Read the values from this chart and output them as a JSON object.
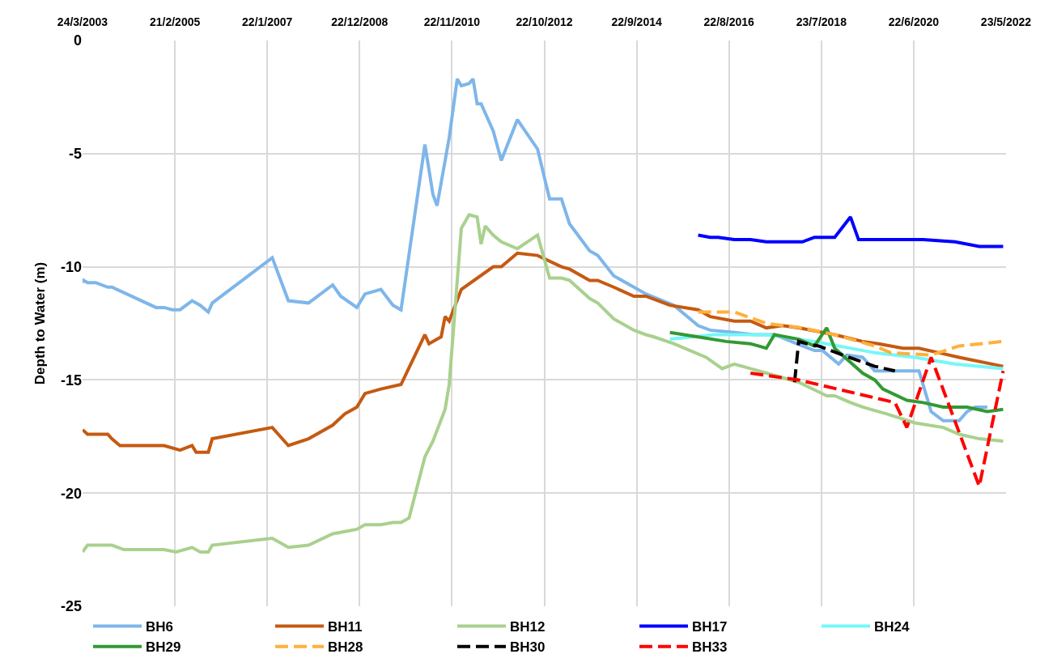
{
  "chart_data": {
    "type": "line",
    "ylabel": "Depth to Water (m)",
    "xlim": [
      "2003-03-24",
      "2022-05-23"
    ],
    "xticks": [
      {
        "value": "2003-03-24",
        "label": "24/3/2003"
      },
      {
        "value": "2005-02-21",
        "label": "21/2/2005"
      },
      {
        "value": "2007-01-22",
        "label": "22/1/2007"
      },
      {
        "value": "2008-12-22",
        "label": "22/12/2008"
      },
      {
        "value": "2010-11-22",
        "label": "22/11/2010"
      },
      {
        "value": "2012-10-22",
        "label": "22/10/2012"
      },
      {
        "value": "2014-09-22",
        "label": "22/9/2014"
      },
      {
        "value": "2016-08-22",
        "label": "22/8/2016"
      },
      {
        "value": "2018-07-23",
        "label": "23/7/2018"
      },
      {
        "value": "2020-06-22",
        "label": "22/6/2020"
      },
      {
        "value": "2022-05-23",
        "label": "23/5/2022"
      }
    ],
    "ylim": [
      -25,
      0
    ],
    "yticks": [
      -25,
      -20,
      -15,
      -10,
      -5,
      0
    ],
    "grid": true,
    "legend": "bottom",
    "marker": "none",
    "series": [
      {
        "name": "BH6",
        "color": "#7eb6ea",
        "line_style": "solid",
        "x": [
          "2003-03-24",
          "2003-04",
          "2003-05",
          "2003-07",
          "2003-10",
          "2003-11",
          "2004-10",
          "2004-12",
          "2005-02",
          "2005-04",
          "2005-07",
          "2005-09",
          "2005-11",
          "2005-12",
          "2007-03",
          "2007-07",
          "2007-12",
          "2008-06",
          "2008-08",
          "2008-12",
          "2009-02",
          "2009-06",
          "2009-09",
          "2009-11",
          "2010-05",
          "2010-07",
          "2010-08",
          "2010-11",
          "2011-01",
          "2011-02",
          "2011-04",
          "2011-05",
          "2011-06",
          "2011-07",
          "2011-10",
          "2011-12",
          "2012-04",
          "2012-09",
          "2012-12",
          "2013-03",
          "2013-05",
          "2013-10",
          "2013-12",
          "2014-04",
          "2014-09",
          "2014-12",
          "2015-07",
          "2016-01",
          "2016-04",
          "2016-10",
          "2017-03",
          "2017-08",
          "2018-03",
          "2018-06",
          "2018-08",
          "2018-12",
          "2019-02",
          "2019-06",
          "2019-09",
          "2019-11",
          "2020-08",
          "2020-11",
          "2021-02",
          "2021-06",
          "2021-08",
          "2021-10",
          "2022-01"
        ],
        "values": [
          -10.7,
          -10.6,
          -10.7,
          -10.7,
          -10.9,
          -10.9,
          -11.8,
          -11.8,
          -11.9,
          -11.9,
          -11.5,
          -11.7,
          -12.0,
          -11.6,
          -9.6,
          -11.5,
          -11.6,
          -10.8,
          -11.3,
          -11.8,
          -11.2,
          -11.0,
          -11.7,
          -11.9,
          -4.6,
          -6.8,
          -7.3,
          -4.3,
          -1.7,
          -2.0,
          -1.9,
          -1.7,
          -2.8,
          -2.8,
          -4.0,
          -5.3,
          -3.5,
          -4.8,
          -7.0,
          -7.0,
          -8.1,
          -9.3,
          -9.5,
          -10.4,
          -10.9,
          -11.2,
          -11.7,
          -12.6,
          -12.8,
          -12.9,
          -13.0,
          -13.0,
          -13.5,
          -13.7,
          -13.7,
          -14.3,
          -13.9,
          -14.0,
          -14.6,
          -14.6,
          -14.6,
          -16.4,
          -16.8,
          -16.8,
          -16.4,
          -16.2,
          -16.2
        ]
      },
      {
        "name": "BH11",
        "color": "#c55a11",
        "line_style": "solid",
        "x": [
          "2003-03-24",
          "2003-05",
          "2003-10",
          "2003-11",
          "2004-01",
          "2004-12",
          "2005-04",
          "2005-07",
          "2005-08",
          "2005-11",
          "2005-12",
          "2007-03",
          "2007-07",
          "2007-12",
          "2008-06",
          "2008-09",
          "2008-12",
          "2009-02",
          "2009-06",
          "2009-11",
          "2010-05",
          "2010-06",
          "2010-08",
          "2010-09",
          "2010-10",
          "2010-11",
          "2011-02",
          "2011-10",
          "2011-12",
          "2012-04",
          "2012-09",
          "2013-03",
          "2013-05",
          "2013-10",
          "2013-12",
          "2014-04",
          "2014-09",
          "2014-12",
          "2015-06",
          "2016-01",
          "2016-04",
          "2016-10",
          "2017-02",
          "2017-06",
          "2017-10",
          "2018-02",
          "2018-11",
          "2019-06",
          "2019-10",
          "2020-04",
          "2020-08",
          "2021-01",
          "2021-06",
          "2022-05"
        ],
        "values": [
          -17.2,
          -17.4,
          -17.4,
          -17.6,
          -17.9,
          -17.9,
          -18.1,
          -17.9,
          -18.2,
          -18.2,
          -17.6,
          -17.1,
          -17.9,
          -17.6,
          -17.0,
          -16.5,
          -16.2,
          -15.6,
          -15.4,
          -15.2,
          -13.0,
          -13.4,
          -13.2,
          -13.1,
          -12.2,
          -12.4,
          -11.0,
          -10.0,
          -10.0,
          -9.4,
          -9.5,
          -10.0,
          -10.1,
          -10.6,
          -10.6,
          -10.9,
          -11.3,
          -11.3,
          -11.7,
          -11.9,
          -12.2,
          -12.4,
          -12.4,
          -12.7,
          -12.6,
          -12.7,
          -13.0,
          -13.3,
          -13.4,
          -13.6,
          -13.6,
          -13.8,
          -14.0,
          -14.4
        ]
      },
      {
        "name": "BH12",
        "color": "#a9d18e",
        "line_style": "solid",
        "x": [
          "2003-03-24",
          "2003-05",
          "2003-11",
          "2004-02",
          "2004-12",
          "2005-03",
          "2005-07",
          "2005-09",
          "2005-11",
          "2005-12",
          "2007-03",
          "2007-07",
          "2007-12",
          "2008-06",
          "2008-09",
          "2008-12",
          "2009-02",
          "2009-06",
          "2009-09",
          "2009-11",
          "2010-01",
          "2010-05",
          "2010-07",
          "2010-10",
          "2010-11",
          "2011-02",
          "2011-04",
          "2011-06",
          "2011-07",
          "2011-08",
          "2011-10",
          "2011-12",
          "2012-04",
          "2012-09",
          "2012-12",
          "2013-03",
          "2013-05",
          "2013-10",
          "2013-12",
          "2014-04",
          "2014-09",
          "2014-12",
          "2015-02",
          "2015-07",
          "2016-03",
          "2016-07",
          "2016-10",
          "2017-02",
          "2017-06",
          "2018-02",
          "2018-09",
          "2018-11",
          "2019-03",
          "2019-06",
          "2019-12",
          "2020-07",
          "2021-02",
          "2021-06",
          "2021-11",
          "2022-05"
        ],
        "values": [
          -22.6,
          -22.3,
          -22.3,
          -22.5,
          -22.5,
          -22.6,
          -22.4,
          -22.6,
          -22.6,
          -22.3,
          -22.0,
          -22.4,
          -22.3,
          -21.8,
          -21.7,
          -21.6,
          -21.4,
          -21.4,
          -21.3,
          -21.3,
          -21.1,
          -18.4,
          -17.7,
          -16.3,
          -15.2,
          -8.3,
          -7.7,
          -7.8,
          -9.0,
          -8.2,
          -8.6,
          -8.9,
          -9.2,
          -8.6,
          -10.5,
          -10.5,
          -10.6,
          -11.4,
          -11.6,
          -12.3,
          -12.8,
          -13.0,
          -13.1,
          -13.4,
          -14.0,
          -14.5,
          -14.3,
          -14.5,
          -14.7,
          -15.1,
          -15.7,
          -15.7,
          -16.0,
          -16.2,
          -16.5,
          -16.9,
          -17.1,
          -17.4,
          -17.6,
          -17.7
        ]
      },
      {
        "name": "BH17",
        "color": "#0000ff",
        "line_style": "solid",
        "x": [
          "2016-01",
          "2016-04",
          "2016-06",
          "2016-10",
          "2017-02",
          "2017-06",
          "2018-03",
          "2018-06",
          "2018-11",
          "2019-03",
          "2019-05",
          "2019-12",
          "2020-09",
          "2021-05",
          "2021-11",
          "2022-05"
        ],
        "values": [
          -8.6,
          -8.7,
          -8.7,
          -8.8,
          -8.8,
          -8.9,
          -8.9,
          -8.7,
          -8.7,
          -7.8,
          -8.8,
          -8.8,
          -8.8,
          -8.9,
          -9.1,
          -9.1
        ]
      },
      {
        "name": "BH24",
        "color": "#75f7f7",
        "line_style": "solid",
        "x": [
          "2015-06",
          "2016-05",
          "2017-06",
          "2018-06",
          "2019-09",
          "2020-07",
          "2021-05",
          "2022-05"
        ],
        "values": [
          -13.2,
          -13.0,
          -13.0,
          -13.3,
          -13.8,
          -14.0,
          -14.3,
          -14.5
        ]
      },
      {
        "name": "BH29",
        "color": "#339933",
        "line_style": "solid",
        "x": [
          "2015-06",
          "2016-01",
          "2016-08",
          "2017-02",
          "2017-06",
          "2017-08",
          "2018-02",
          "2018-06",
          "2018-09",
          "2018-11",
          "2019-06",
          "2019-09",
          "2019-11",
          "2020-05",
          "2020-09",
          "2021-02",
          "2021-08",
          "2022-01",
          "2022-05"
        ],
        "values": [
          -12.9,
          -13.1,
          -13.3,
          -13.4,
          -13.6,
          -13.0,
          -13.2,
          -13.5,
          -12.7,
          -13.6,
          -14.7,
          -15.0,
          -15.4,
          -15.9,
          -16.0,
          -16.2,
          -16.2,
          -16.4,
          -16.3
        ]
      },
      {
        "name": "BH28",
        "color": "#ffb03b",
        "line_style": "dashed",
        "x": [
          "2016-01",
          "2016-10",
          "2017-06",
          "2018-03",
          "2018-11",
          "2019-09",
          "2020-01",
          "2020-11",
          "2021-06",
          "2022-05"
        ],
        "values": [
          -12.0,
          -12.0,
          -12.5,
          -12.7,
          -13.0,
          -13.5,
          -13.8,
          -13.9,
          -13.5,
          -13.3
        ]
      },
      {
        "name": "BH30",
        "color": "#000000",
        "line_style": "dashed",
        "x": [
          "2018-01",
          "2018-02",
          "2018-04",
          "2018-07",
          "2019-01",
          "2019-09",
          "2020-02"
        ],
        "values": [
          -15.1,
          -13.3,
          -13.4,
          -13.5,
          -13.9,
          -14.4,
          -14.6
        ]
      },
      {
        "name": "BH33",
        "color": "#ff0000",
        "line_style": "dashed",
        "x": [
          "2017-02",
          "2018-02",
          "2020-02",
          "2020-05",
          "2020-11",
          "2021-11",
          "2022-05"
        ],
        "values": [
          -14.7,
          -15.0,
          -16.0,
          -17.1,
          -14.0,
          -19.7,
          -14.6
        ]
      }
    ]
  }
}
